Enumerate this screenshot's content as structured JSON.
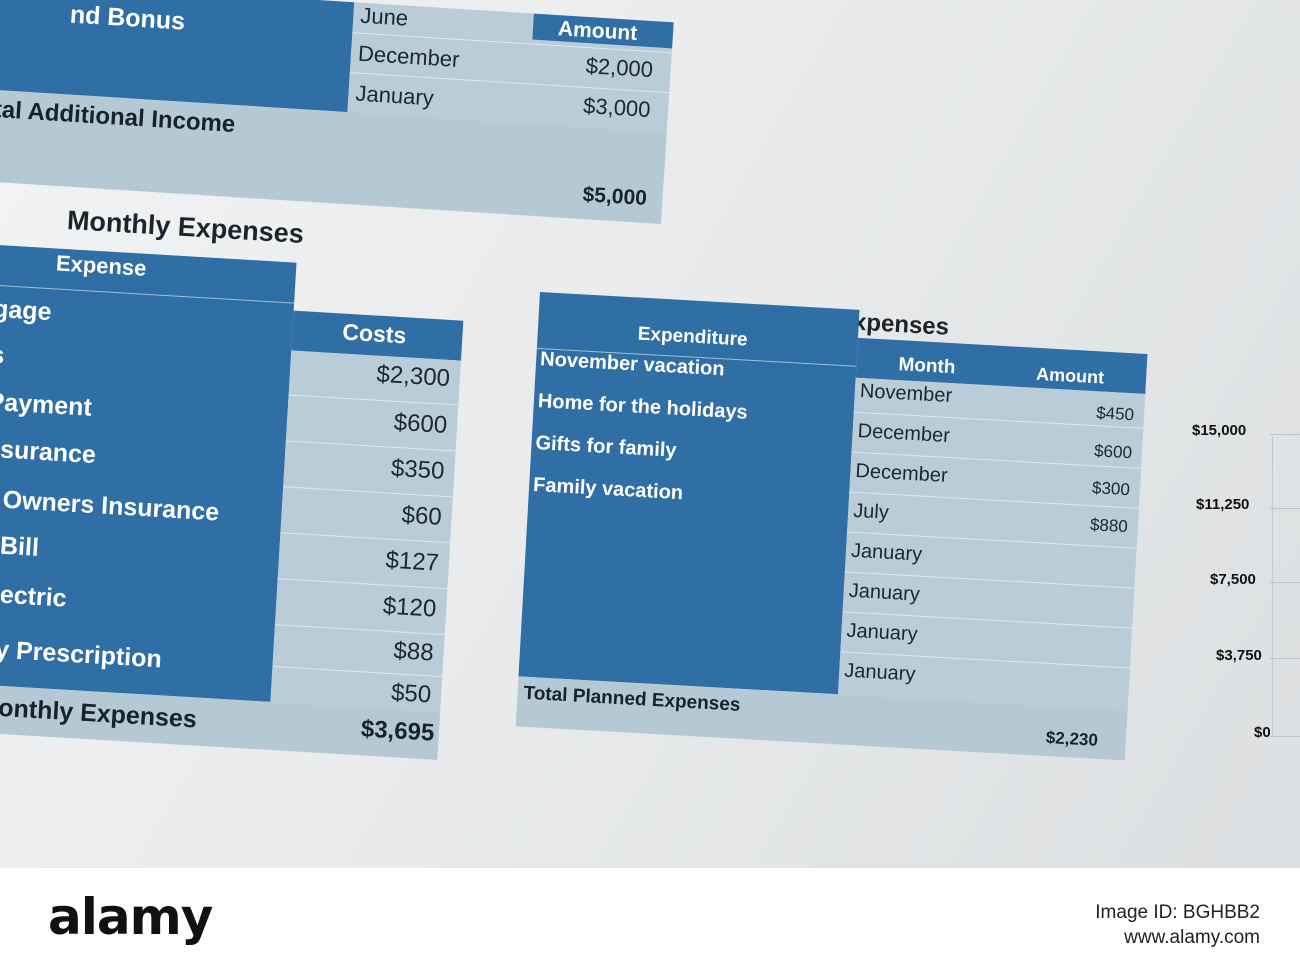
{
  "additional_income": {
    "label": "nd Bonus",
    "amount_header": "Amount",
    "rows": [
      {
        "month": "June",
        "amount": ""
      },
      {
        "month": "December",
        "amount": "$2,000"
      },
      {
        "month": "January",
        "amount": "$3,000"
      }
    ],
    "total_label": "tal Additional Income",
    "total_value": "$5,000"
  },
  "monthly": {
    "title": "Monthly Expenses",
    "col_expense": "Expense",
    "col_costs": "Costs",
    "rows": [
      {
        "name": "gage",
        "cost": "$2,300"
      },
      {
        "name": "s",
        "cost": "$600"
      },
      {
        "name": "Payment",
        "cost": "$350"
      },
      {
        "name": "nsurance",
        "cost": "$60"
      },
      {
        "name": "e Owners Insurance",
        "cost": "$127"
      },
      {
        "name": "e Bill",
        "cost": "$120"
      },
      {
        "name": "Electric",
        "cost": "$88"
      },
      {
        "name": "hly Prescription",
        "cost": "$50"
      }
    ],
    "total_label": "Monthly Expenses",
    "total_value": "$3,695"
  },
  "planned": {
    "title": "Planned Expenses",
    "col_expenditure": "Expenditure",
    "col_month": "Month",
    "col_amount": "Amount",
    "items": [
      "November vacation",
      "Home for the holidays",
      "Gifts for family",
      "Family vacation"
    ],
    "months": [
      "November",
      "December",
      "December",
      "July",
      "January",
      "January",
      "January",
      "January"
    ],
    "amounts": [
      "$450",
      "$600",
      "$300",
      "$880",
      "",
      "",
      "",
      ""
    ],
    "total_label": "Total Planned Expenses",
    "total_value": "$2,230"
  },
  "chart_axis": {
    "ticks": [
      "$15,000",
      "$11,250",
      "$7,500",
      "$3,750",
      "$0"
    ]
  },
  "footer": {
    "brand": "alamy",
    "image_id": "Image ID: BGHBB2",
    "site": "www.alamy.com"
  }
}
